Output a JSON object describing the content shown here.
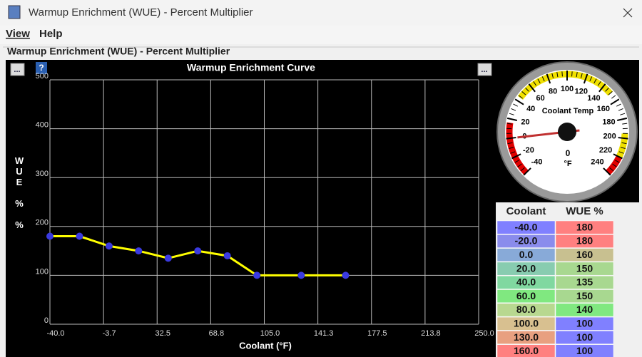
{
  "window": {
    "title": "Warmup Enrichment (WUE) - Percent Multiplier"
  },
  "menu": [
    "View",
    "Help"
  ],
  "panel": {
    "title": "Warmup Enrichment (WUE) - Percent Multiplier"
  },
  "chart_data": {
    "type": "line",
    "title": "Warmup Enrichment Curve",
    "x_label": "Coolant (°F)",
    "y_label": "WUE % %",
    "x": [
      -40,
      -20,
      0,
      20,
      40,
      60,
      80,
      100,
      130,
      160
    ],
    "series": [
      {
        "color": "#ffff00",
        "marker_color": "#3a3ae0",
        "values": [
          180,
          180,
          160,
          150,
          135,
          150,
          140,
          100,
          100,
          100
        ]
      }
    ],
    "xlim": [
      -40,
      250
    ],
    "xticks": [
      {
        "value": -40,
        "label": "-40.0"
      },
      {
        "value": -3.75,
        "label": "-3.7"
      },
      {
        "value": 32.5,
        "label": "32.5"
      },
      {
        "value": 68.75,
        "label": "68.8"
      },
      {
        "value": 105,
        "label": "105.0"
      },
      {
        "value": 141.25,
        "label": "141.3"
      },
      {
        "value": 177.5,
        "label": "177.5"
      },
      {
        "value": 213.75,
        "label": "213.8"
      },
      {
        "value": 250,
        "label": "250.0"
      }
    ],
    "ylim": [
      0,
      500
    ],
    "yticks": [
      0,
      100,
      200,
      300,
      400,
      500
    ],
    "grid": true
  },
  "gauge": {
    "title": "Coolant Temp",
    "unit": "°F",
    "value": 0,
    "lim": [
      -40,
      240
    ],
    "ticks": [
      -40,
      -20,
      0,
      20,
      40,
      60,
      80,
      100,
      120,
      140,
      160,
      180,
      200,
      220,
      240
    ]
  },
  "table": {
    "headers": [
      "Coolant",
      "WUE %"
    ],
    "rows": [
      [
        "-40.0",
        "180"
      ],
      [
        "-20.0",
        "180"
      ],
      [
        "0.0",
        "160"
      ],
      [
        "20.0",
        "150"
      ],
      [
        "40.0",
        "135"
      ],
      [
        "60.0",
        "150"
      ],
      [
        "80.0",
        "140"
      ],
      [
        "100.0",
        "100"
      ],
      [
        "130.0",
        "100"
      ],
      [
        "160.0",
        "100"
      ]
    ],
    "colors": [
      [
        "#8080ff",
        "#ff8080"
      ],
      [
        "#8a8cec",
        "#ff8080"
      ],
      [
        "#88aad8",
        "#c8c090"
      ],
      [
        "#88ccb0",
        "#a8d890"
      ],
      [
        "#80d8a0",
        "#a8d890"
      ],
      [
        "#80e880",
        "#a8d890"
      ],
      [
        "#b8d890",
        "#80e880"
      ],
      [
        "#d8c090",
        "#8080ff"
      ],
      [
        "#e8a080",
        "#8080ff"
      ],
      [
        "#ff8080",
        "#8080ff"
      ]
    ]
  }
}
